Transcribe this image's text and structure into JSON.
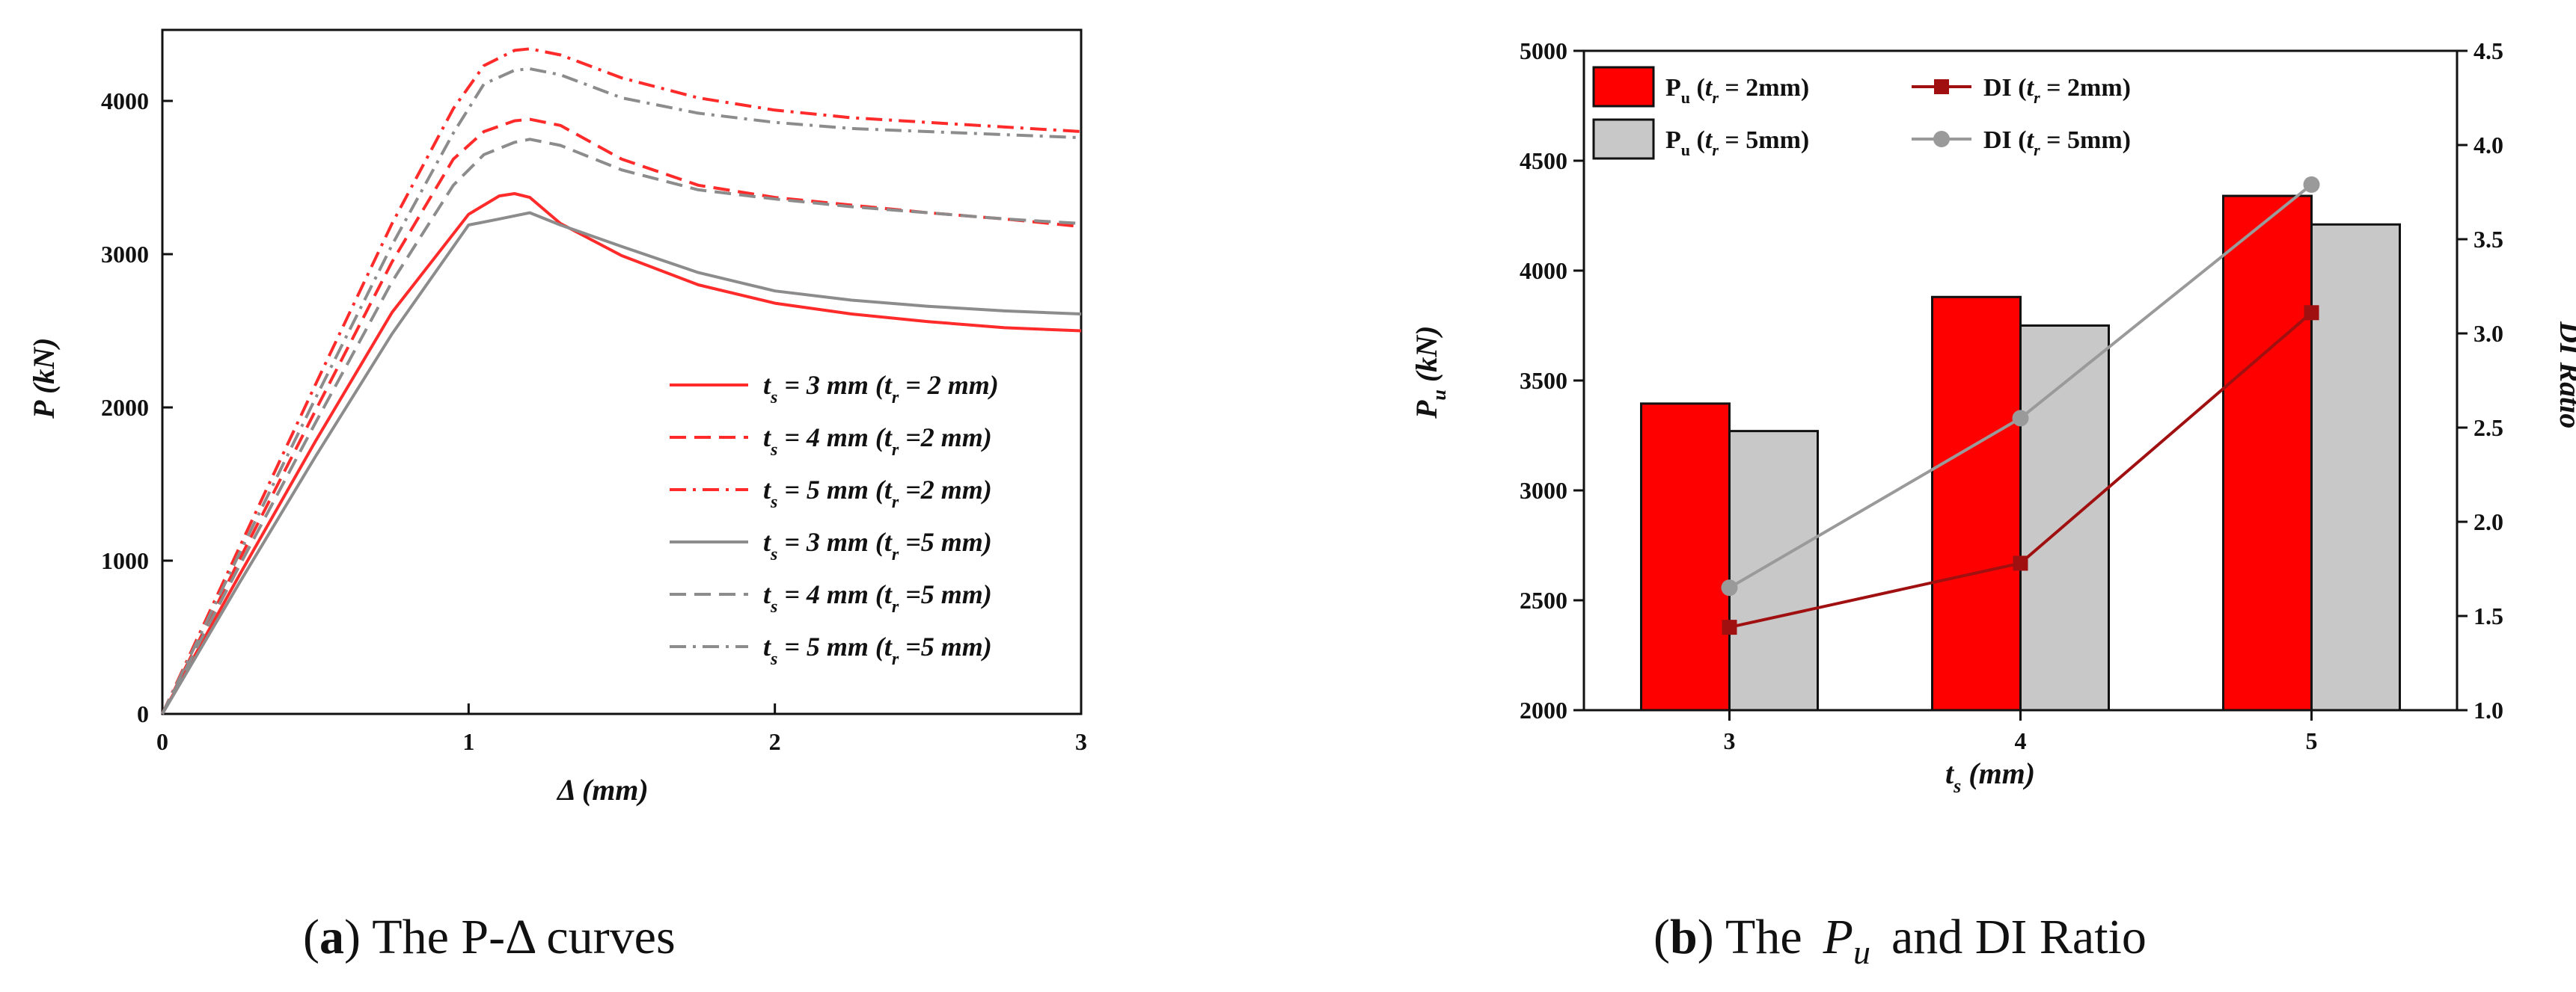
{
  "chart_data": [
    {
      "type": "line",
      "caption": {
        "tag": "a",
        "text": "The P-Δ curves"
      },
      "xlabel": "Δ (mm)",
      "ylabel": "P (kN)",
      "xlim": [
        0,
        3
      ],
      "ylim": [
        0,
        4500
      ],
      "xticks": [
        0,
        1,
        2,
        3
      ],
      "yticks": [
        0,
        1000,
        2000,
        3000,
        4000
      ],
      "legend_position": "lower-right",
      "series": [
        {
          "name": "ts = 3 mm (tr = 2 mm)",
          "ts": "3",
          "tr": "2",
          "gap": true,
          "color": "#ff2a2a",
          "dash": "solid",
          "x": [
            0,
            0.25,
            0.5,
            0.75,
            1.0,
            1.1,
            1.15,
            1.2,
            1.3,
            1.5,
            1.75,
            2.0,
            2.25,
            2.5,
            2.75,
            3.0
          ],
          "y": [
            0,
            900,
            1780,
            2620,
            3260,
            3380,
            3395,
            3370,
            3200,
            2990,
            2800,
            2680,
            2610,
            2560,
            2520,
            2500
          ]
        },
        {
          "name": "ts = 4 mm (tr =2 mm)",
          "ts": "4",
          "tr": "2",
          "gap": false,
          "color": "#ff2a2a",
          "dash": "dashed",
          "x": [
            0,
            0.25,
            0.5,
            0.75,
            0.95,
            1.05,
            1.15,
            1.2,
            1.3,
            1.5,
            1.75,
            2.0,
            2.25,
            2.5,
            2.75,
            3.0
          ],
          "y": [
            0,
            1000,
            1980,
            2950,
            3620,
            3800,
            3870,
            3880,
            3840,
            3620,
            3450,
            3370,
            3320,
            3270,
            3230,
            3180
          ]
        },
        {
          "name": "ts = 5 mm (tr =2 mm)",
          "ts": "5",
          "tr": "2",
          "gap": false,
          "color": "#ff2a2a",
          "dash": "dashdot",
          "x": [
            0,
            0.25,
            0.5,
            0.75,
            0.95,
            1.05,
            1.15,
            1.2,
            1.3,
            1.5,
            1.75,
            2.0,
            2.25,
            2.5,
            2.75,
            3.0
          ],
          "y": [
            0,
            1080,
            2150,
            3200,
            3950,
            4230,
            4330,
            4340,
            4300,
            4150,
            4020,
            3940,
            3890,
            3860,
            3830,
            3800
          ]
        },
        {
          "name": "ts = 3 mm (tr =5 mm)",
          "ts": "3",
          "tr": "5",
          "gap": false,
          "color": "#8c8c8c",
          "dash": "solid",
          "x": [
            0,
            0.25,
            0.5,
            0.75,
            1.0,
            1.1,
            1.2,
            1.3,
            1.5,
            1.75,
            2.0,
            2.25,
            2.5,
            2.75,
            3.0
          ],
          "y": [
            0,
            850,
            1680,
            2480,
            3190,
            3230,
            3270,
            3190,
            3050,
            2880,
            2760,
            2700,
            2660,
            2630,
            2610
          ]
        },
        {
          "name": "ts = 4 mm (tr =5 mm)",
          "ts": "4",
          "tr": "5",
          "gap": false,
          "color": "#8c8c8c",
          "dash": "dashed",
          "x": [
            0,
            0.25,
            0.5,
            0.75,
            0.95,
            1.05,
            1.15,
            1.2,
            1.3,
            1.5,
            1.75,
            2.0,
            2.25,
            2.5,
            2.75,
            3.0
          ],
          "y": [
            0,
            960,
            1900,
            2820,
            3450,
            3650,
            3730,
            3750,
            3710,
            3550,
            3420,
            3360,
            3310,
            3270,
            3230,
            3200
          ]
        },
        {
          "name": "ts = 5 mm (tr =5 mm)",
          "ts": "5",
          "tr": "5",
          "gap": false,
          "color": "#8c8c8c",
          "dash": "dashdot",
          "x": [
            0,
            0.25,
            0.5,
            0.75,
            0.95,
            1.05,
            1.15,
            1.2,
            1.3,
            1.5,
            1.75,
            2.0,
            2.25,
            2.5,
            2.75,
            3.0
          ],
          "y": [
            0,
            1040,
            2060,
            3060,
            3790,
            4110,
            4200,
            4210,
            4170,
            4020,
            3920,
            3860,
            3820,
            3800,
            3780,
            3760
          ]
        }
      ]
    },
    {
      "type": "bar",
      "caption": {
        "tag": "b",
        "text": "The",
        "symbol": "P",
        "symbol_sub": "u",
        "text_after": "and DI Ratio"
      },
      "xlabel": "ts (mm)",
      "ylabel": "Pu (kN)",
      "ylabel_right": "DI Ratio",
      "categories": [
        "3",
        "4",
        "5"
      ],
      "ylim": [
        2000,
        5000
      ],
      "yticks": [
        2000,
        2500,
        3000,
        3500,
        4000,
        4500,
        5000
      ],
      "ylim_right": [
        1.0,
        4.5
      ],
      "yticks_right": [
        "1.0",
        "1.5",
        "2.0",
        "2.5",
        "3.0",
        "3.5",
        "4.0",
        "4.5"
      ],
      "legend_position": "top-left",
      "series": [
        {
          "name": "Pu (tr = 2mm)",
          "kind": "bar",
          "tr": "2mm",
          "color": "#ff0000",
          "values": [
            3395,
            3880,
            4340
          ]
        },
        {
          "name": "Pu (tr = 5mm)",
          "kind": "bar",
          "tr": "5mm",
          "color": "#c8c8c8",
          "values": [
            3270,
            3750,
            4210
          ]
        },
        {
          "name": "DI (tr = 2mm)",
          "kind": "line",
          "axis": "right",
          "marker": "square",
          "tr": "2mm",
          "color": "#a01010",
          "values": [
            1.44,
            1.78,
            3.11
          ]
        },
        {
          "name": "DI (tr = 5mm)",
          "kind": "line",
          "axis": "right",
          "marker": "circle",
          "tr": "5mm",
          "color": "#9a9a9a",
          "values": [
            1.65,
            2.55,
            3.79
          ]
        }
      ]
    }
  ]
}
